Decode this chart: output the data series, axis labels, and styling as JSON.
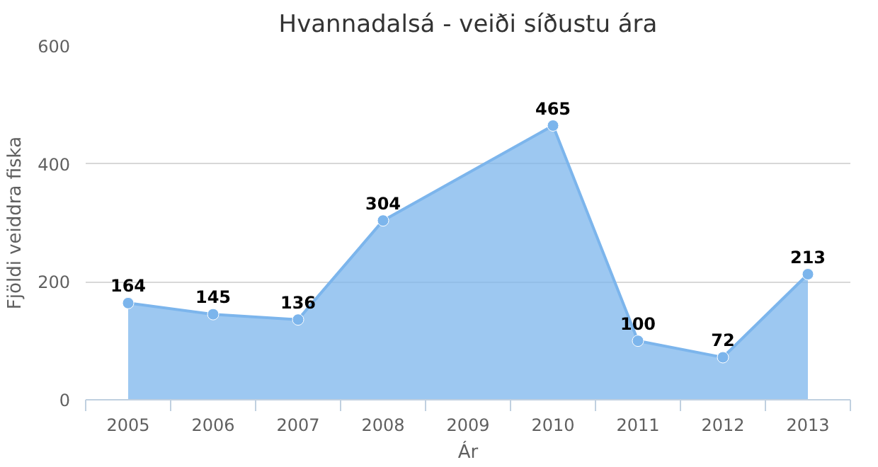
{
  "chart_data": {
    "type": "area",
    "title": "Hvannadalsá - veiði síðustu ára",
    "xlabel": "Ár",
    "ylabel": "Fjöldi veiddra fiska",
    "categories": [
      "2005",
      "2006",
      "2007",
      "2008",
      "2009",
      "2010",
      "2011",
      "2012",
      "2013"
    ],
    "series": [
      {
        "color": "#7cb5ec",
        "values": [
          164,
          145,
          136,
          304,
          null,
          465,
          100,
          72,
          213
        ]
      }
    ],
    "ylim": [
      0,
      600
    ],
    "yticks": [
      0,
      200,
      400,
      600
    ],
    "grid": "y",
    "marker": "circle",
    "data_labels": true
  }
}
